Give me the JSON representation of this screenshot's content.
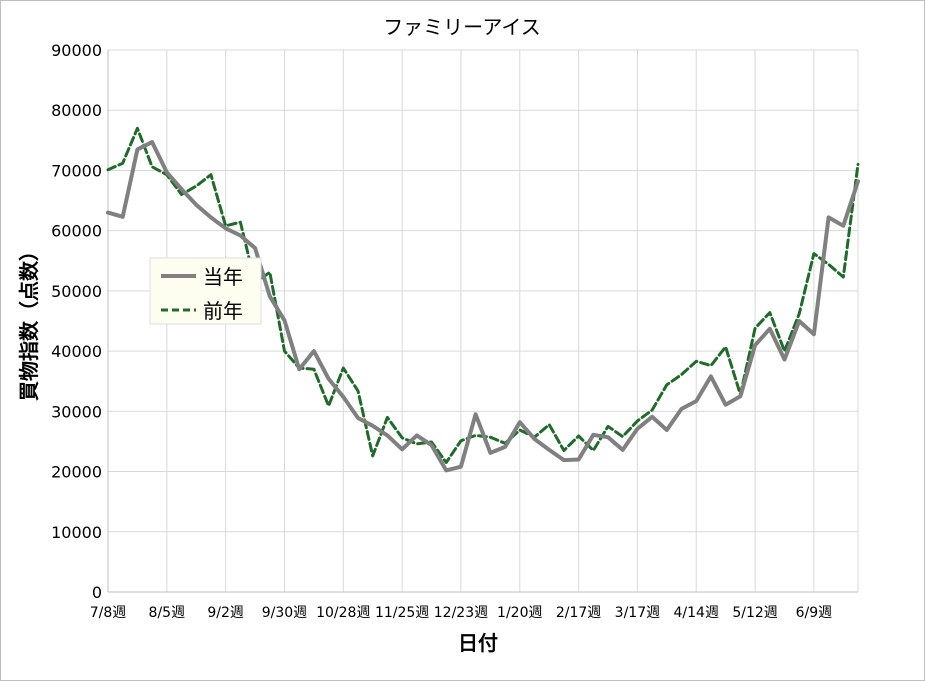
{
  "chart_data": {
    "type": "line",
    "title": "ファミリーアイス",
    "xlabel": "日付",
    "ylabel": "買物指数（点数）",
    "ylim": [
      0,
      90000
    ],
    "yticks": [
      "0",
      "10000",
      "20000",
      "30000",
      "40000",
      "50000",
      "60000",
      "70000",
      "80000",
      "90000"
    ],
    "xticks": [
      "7/8週",
      "8/5週",
      "9/2週",
      "9/30週",
      "10/28週",
      "11/25週",
      "12/23週",
      "1/20週",
      "2/17週",
      "3/17週",
      "4/14週",
      "5/12週",
      "6/9週"
    ],
    "grid": true,
    "legend_position": "left",
    "series": [
      {
        "name": "当年",
        "color": "#808080",
        "style": "solid",
        "values": [
          63000,
          62300,
          73500,
          74700,
          69700,
          66900,
          64300,
          62200,
          60400,
          59200,
          57100,
          49100,
          45100,
          37000,
          40000,
          35400,
          32400,
          28900,
          27600,
          26000,
          23700,
          26000,
          24400,
          20200,
          20800,
          29500,
          23100,
          24100,
          28200,
          25400,
          23600,
          21900,
          22000,
          26100,
          25700,
          23600,
          27100,
          29100,
          26900,
          30400,
          31700,
          35800,
          31100,
          32500,
          41000,
          43700,
          38600,
          45000,
          42800,
          62200,
          60800,
          68200
        ]
      },
      {
        "name": "前年",
        "color": "#1e6b2a",
        "style": "dashed",
        "values": [
          70100,
          71200,
          77000,
          70600,
          69300,
          66000,
          67400,
          69300,
          60800,
          61400,
          51300,
          53100,
          40000,
          37200,
          37000,
          30900,
          37200,
          33400,
          22600,
          29000,
          25600,
          24600,
          24900,
          21500,
          25100,
          26000,
          25700,
          24700,
          26900,
          25700,
          27800,
          23500,
          25900,
          23500,
          27500,
          25800,
          28400,
          30200,
          34400,
          36100,
          38300,
          37600,
          40700,
          32800,
          43800,
          46400,
          40000,
          46200,
          56200,
          54400,
          52300,
          71000
        ]
      }
    ]
  }
}
